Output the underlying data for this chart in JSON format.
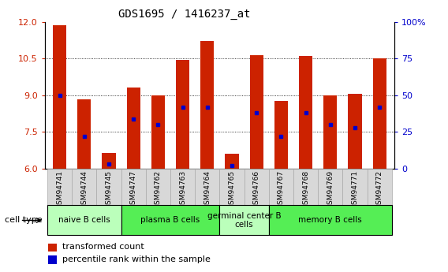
{
  "title": "GDS1695 / 1416237_at",
  "samples": [
    "GSM94741",
    "GSM94744",
    "GSM94745",
    "GSM94747",
    "GSM94762",
    "GSM94763",
    "GSM94764",
    "GSM94765",
    "GSM94766",
    "GSM94767",
    "GSM94768",
    "GSM94769",
    "GSM94771",
    "GSM94772"
  ],
  "transformed_count": [
    11.85,
    8.82,
    6.65,
    9.3,
    9.0,
    10.45,
    11.2,
    6.6,
    10.62,
    8.78,
    10.6,
    9.0,
    9.05,
    10.5
  ],
  "percentile_rank_pct": [
    50,
    22,
    3,
    34,
    30,
    42,
    42,
    2,
    38,
    22,
    38,
    30,
    28,
    42
  ],
  "cell_groups": [
    {
      "label": "naive B cells",
      "start": 0,
      "end": 3,
      "color": "#bbffbb"
    },
    {
      "label": "plasma B cells",
      "start": 3,
      "end": 7,
      "color": "#55ee55"
    },
    {
      "label": "germinal center B\ncells",
      "start": 7,
      "end": 9,
      "color": "#bbffbb"
    },
    {
      "label": "memory B cells",
      "start": 9,
      "end": 14,
      "color": "#55ee55"
    }
  ],
  "ylim_left": [
    6,
    12
  ],
  "ylim_right": [
    0,
    100
  ],
  "yticks_left": [
    6,
    7.5,
    9,
    10.5,
    12
  ],
  "yticks_right": [
    0,
    25,
    50,
    75,
    100
  ],
  "bar_color": "#cc2200",
  "dot_color": "#0000cc",
  "bar_width": 0.55,
  "bar_bottom": 6.0,
  "background_color": "#ffffff",
  "tick_label_color_left": "#cc2200",
  "tick_label_color_right": "#0000cc",
  "xtick_bg_color": "#d8d8d8",
  "xtick_border_color": "#aaaaaa"
}
